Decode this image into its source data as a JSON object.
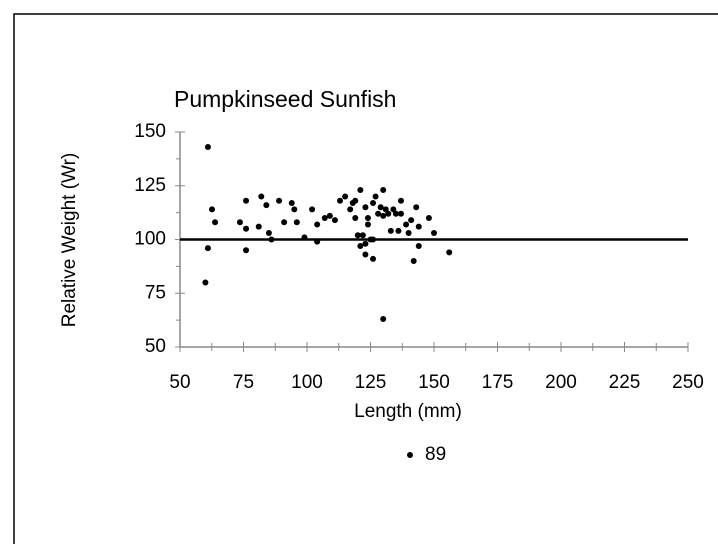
{
  "chart_data": {
    "type": "scatter",
    "title": "Pumpkinseed Sunfish",
    "x_label": "Length (mm)",
    "y_label": "Relative Weight (Wr)",
    "xlim": [
      50,
      250
    ],
    "xticks": [
      50,
      75,
      100,
      125,
      150,
      175,
      200,
      225,
      250
    ],
    "xminorticks": [
      62.5,
      87.5,
      112.5,
      137.5,
      162.5,
      187.5,
      212.5,
      237.5
    ],
    "ylim": [
      50,
      150
    ],
    "yticks": [
      50,
      75,
      100,
      125,
      150
    ],
    "yminorticks": [
      62.5,
      87.5,
      112.5,
      137.5
    ],
    "reference_line": 100,
    "series": [
      {
        "name": "89",
        "color": "#000000",
        "x": [
          60,
          61,
          62.6,
          63.8,
          61,
          73.6,
          76,
          76,
          76,
          82,
          81,
          84,
          85,
          86,
          89,
          91,
          94,
          95,
          96,
          99,
          102,
          104,
          104,
          107,
          109,
          111,
          113,
          115,
          117,
          118,
          119,
          119,
          120,
          121,
          122,
          123,
          121,
          123,
          124,
          124,
          125,
          126,
          126,
          127,
          128,
          129,
          130,
          130,
          131,
          132,
          130,
          133,
          134,
          135,
          136,
          137,
          137,
          139,
          140,
          141,
          142,
          143,
          144,
          144,
          148,
          150,
          156,
          126,
          123
        ],
        "values": [
          80,
          143,
          114,
          108,
          96,
          108,
          105,
          118,
          95,
          120,
          106,
          116,
          103,
          100,
          118,
          108,
          117,
          114,
          108,
          101,
          114,
          107,
          99,
          110,
          111,
          109,
          118,
          120,
          114,
          117,
          118,
          110,
          102,
          97,
          102,
          93,
          123,
          115,
          110,
          107,
          100,
          91,
          117,
          120,
          112,
          115,
          111,
          123,
          114,
          112,
          63,
          104,
          114,
          112,
          104,
          118,
          112,
          107,
          103,
          109,
          90,
          115,
          106,
          97,
          110,
          103,
          94,
          100,
          98
        ]
      }
    ],
    "legend": "bottom"
  }
}
